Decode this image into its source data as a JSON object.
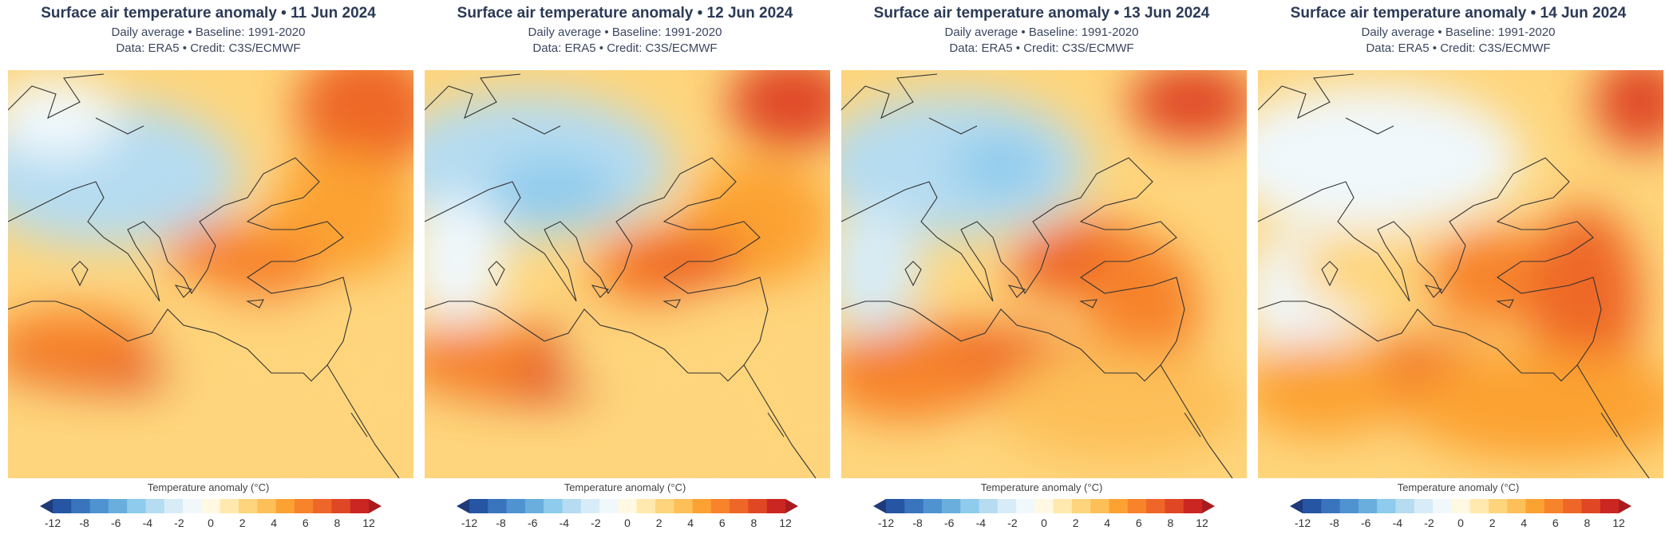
{
  "panels": [
    {
      "title": "Surface air temperature anomaly • 11 Jun 2024",
      "subtitle": "Daily average • Baseline: 1991-2020",
      "credit": "Data: ERA5 • Credit: C3S/ECMWF"
    },
    {
      "title": "Surface air temperature anomaly • 12 Jun 2024",
      "subtitle": "Daily average • Baseline: 1991-2020",
      "credit": "Data: ERA5 • Credit: C3S/ECMWF"
    },
    {
      "title": "Surface air temperature anomaly • 13 Jun 2024",
      "subtitle": "Daily average • Baseline: 1991-2020",
      "credit": "Data: ERA5 • Credit: C3S/ECMWF"
    },
    {
      "title": "Surface air temperature anomaly • 14 Jun 2024",
      "subtitle": "Daily average • Baseline: 1991-2020",
      "credit": "Data: ERA5 • Credit: C3S/ECMWF"
    }
  ],
  "chart_data": {
    "type": "heatmap",
    "variable": "Surface air temperature anomaly",
    "units": "°C",
    "colorbar_label": "Temperature anomaly (°C)",
    "colorbar_ticks": [
      "-12",
      "-8",
      "-6",
      "-4",
      "-2",
      "0",
      "2",
      "4",
      "6",
      "8",
      "12"
    ],
    "range": [
      -12,
      12
    ],
    "colors": [
      "#1f3a7a",
      "#2555a3",
      "#3a74bd",
      "#4f93d0",
      "#6aaede",
      "#8ecbed",
      "#b5dcf1",
      "#d7ecf7",
      "#f0f8fc",
      "#fff8e3",
      "#ffe9ae",
      "#fed57c",
      "#fdbf58",
      "#fca233",
      "#f7832b",
      "#ee6728",
      "#e04825",
      "#cb2622",
      "#a81c1f"
    ],
    "maps": [
      "11 Jun 2024",
      "12 Jun 2024",
      "13 Jun 2024",
      "14 Jun 2024"
    ]
  }
}
